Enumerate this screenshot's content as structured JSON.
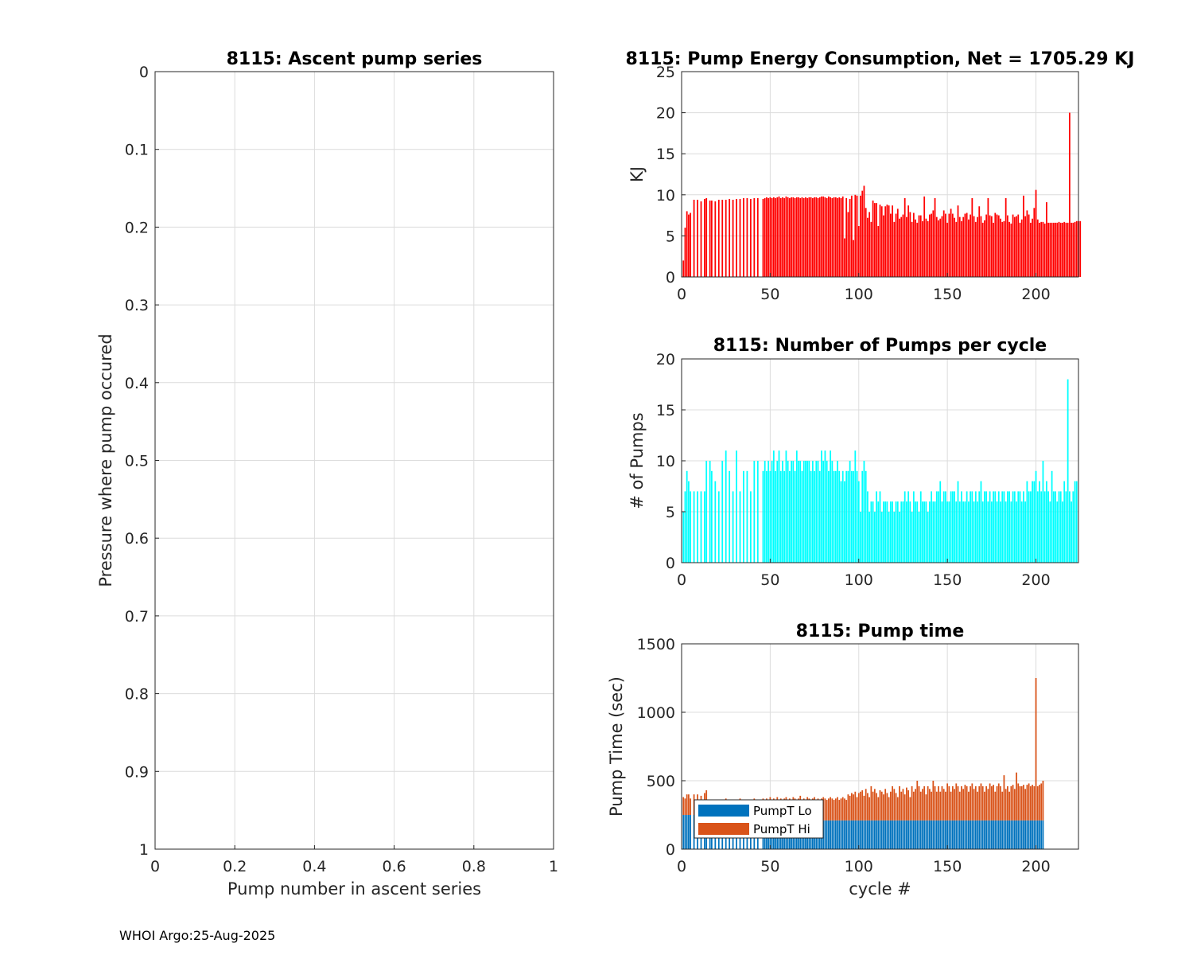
{
  "footer": "WHOI Argo:25-Aug-2025",
  "chart_data": [
    {
      "id": "ascent",
      "type": "line",
      "title": "8115: Ascent pump series",
      "xlabel": "Pump number in ascent series",
      "ylabel": "Pressure where pump occured",
      "xlim": [
        0,
        1
      ],
      "ylim": [
        0,
        1
      ],
      "y_reversed": true,
      "xticks": [
        0,
        0.2,
        0.4,
        0.6,
        0.8,
        1
      ],
      "xtick_labels": [
        "0",
        "0.2",
        "0.4",
        "0.6",
        "0.8",
        "1"
      ],
      "yticks": [
        0,
        0.1,
        0.2,
        0.3,
        0.4,
        0.5,
        0.6,
        0.7,
        0.8,
        0.9,
        1
      ],
      "ytick_labels": [
        "0",
        "0.1",
        "0.2",
        "0.3",
        "0.4",
        "0.5",
        "0.6",
        "0.7",
        "0.8",
        "0.9",
        "1"
      ],
      "grid": true,
      "series": []
    },
    {
      "id": "energy",
      "type": "bar",
      "title": "8115: Pump Energy Consumption,  Net = 1705.29 KJ",
      "xlabel": "",
      "ylabel": "KJ",
      "xlim": [
        0,
        224
      ],
      "ylim": [
        0,
        25
      ],
      "xticks": [
        0,
        50,
        100,
        150,
        200
      ],
      "xtick_labels": [
        "0",
        "50",
        "100",
        "150",
        "200"
      ],
      "yticks": [
        0,
        5,
        10,
        15,
        20,
        25
      ],
      "ytick_labels": [
        "0",
        "5",
        "10",
        "15",
        "20",
        "25"
      ],
      "grid": true,
      "color": "#ff0000",
      "cycles": [
        1,
        2,
        3,
        4,
        5,
        7,
        9,
        11,
        13,
        14,
        16,
        17,
        19,
        21,
        23,
        25,
        27,
        29,
        31,
        33,
        35,
        37,
        39,
        41,
        43
      ],
      "values": [
        2,
        6,
        8,
        7.6,
        7.8,
        9.4,
        9.4,
        9.2,
        9.5,
        9.6,
        9.3,
        9.3,
        9.2,
        9.4,
        9.4,
        9.4,
        9.5,
        9.4,
        9.5,
        9.5,
        9.6,
        9.6,
        9.5,
        9.6,
        9.6
      ],
      "continuous_start": 46,
      "continuous_values": [
        9.5,
        9.6,
        9.7,
        9.6,
        9.7,
        9.6,
        9.7,
        9.6,
        9.7,
        9.8,
        9.6,
        9.7,
        9.6,
        9.8,
        9.7,
        9.6,
        9.7,
        9.7,
        9.6,
        9.7,
        9.7,
        9.6,
        9.7,
        9.6,
        9.7,
        9.6,
        9.7,
        9.7,
        9.6,
        9.7,
        9.7,
        9.6,
        9.7,
        9.8,
        9.8,
        9.7,
        9.6,
        9.8,
        9.7,
        9.6,
        9.7,
        9.7,
        9.6,
        9.7,
        9.6,
        9.8,
        4.7,
        9.6,
        7.9,
        9.5,
        9.9,
        4.5,
        10,
        9.9,
        6.2,
        9.9,
        10.5,
        11.1,
        8.4,
        7.2,
        7.9,
        6.7,
        9.3,
        9.0,
        9.0,
        6.2,
        8.8,
        8.6,
        7.5,
        8.6,
        8.8,
        8.7,
        7.7,
        8.7,
        6.7,
        7.7,
        8.3,
        7.1,
        7.3,
        7.6,
        9.6,
        7.3,
        8.7,
        7.9,
        6.7,
        7.8,
        7.0,
        6.6,
        7.5,
        7.5,
        6.8,
        9.8,
        7.1,
        6.8,
        7.6,
        7.7,
        8.1,
        9.6,
        7.3,
        6.9,
        7.1,
        7.4,
        8.1,
        7.7,
        6.6,
        7.7,
        8.3,
        7.7,
        7.2,
        6.7,
        8.7,
        7.3,
        6.8,
        7.3,
        7.7,
        7.8,
        7.0,
        7.6,
        9.6,
        7.4,
        6.7,
        7.3,
        8.6,
        7.4,
        6.6,
        6.9,
        7.6,
        9.6,
        7.5,
        7.4,
        6.6,
        7.8,
        7.6,
        7.5,
        7.1,
        6.7,
        6.8,
        9.6,
        7.5,
        6.7,
        6.5,
        7.6,
        7.3,
        7.4,
        7.6,
        6.6,
        7.0,
        9.9,
        7.4,
        8.1,
        7.6,
        6.6,
        7.1,
        8.4,
        10.6,
        7.0,
        6.6,
        6.7,
        6.7,
        6.5,
        9.1,
        6.6,
        6.6,
        6.6,
        6.6,
        6.6,
        6.6,
        6.7,
        6.6,
        6.6,
        6.7,
        6.6,
        6.6,
        20,
        6.6,
        6.6,
        6.7,
        6.8,
        6.8,
        6.8
      ]
    },
    {
      "id": "npumps",
      "type": "bar",
      "title": "8115: Number of Pumps per cycle",
      "xlabel": "",
      "ylabel": "# of Pumps",
      "xlim": [
        0,
        224
      ],
      "ylim": [
        0,
        20
      ],
      "xticks": [
        0,
        50,
        100,
        150,
        200
      ],
      "xtick_labels": [
        "0",
        "50",
        "100",
        "150",
        "200"
      ],
      "yticks": [
        0,
        5,
        10,
        15,
        20
      ],
      "ytick_labels": [
        "0",
        "5",
        "10",
        "15",
        "20"
      ],
      "grid": true,
      "color": "#00ffff",
      "cycles": [
        1,
        2,
        3,
        4,
        5,
        7,
        9,
        11,
        13,
        14,
        16,
        17,
        19,
        21,
        23,
        25,
        27,
        29,
        31,
        33,
        35,
        37,
        39,
        41,
        43
      ],
      "values": [
        5,
        7,
        9,
        8,
        7,
        7,
        7,
        7,
        7,
        10,
        10,
        9,
        8,
        7,
        10,
        11,
        9,
        7,
        11,
        7,
        9,
        9,
        7,
        10,
        10
      ],
      "continuous_start": 46,
      "continuous_values": [
        9,
        10,
        9,
        10,
        9,
        10,
        11,
        9,
        10,
        11,
        9,
        10,
        9,
        11,
        10,
        9,
        10,
        10,
        9,
        11,
        10,
        10,
        9,
        10,
        10,
        10,
        10,
        9,
        10,
        9,
        10,
        10,
        9,
        11,
        10,
        11,
        10,
        9,
        11,
        10,
        9,
        9,
        10,
        9,
        8,
        9,
        8,
        9,
        9,
        10,
        9,
        9,
        11,
        9,
        8,
        5,
        9,
        10,
        9,
        7,
        5,
        6,
        6,
        5,
        7,
        6,
        7,
        5,
        6,
        6,
        6,
        5,
        6,
        6,
        5,
        6,
        6,
        5,
        6,
        6,
        7,
        6,
        7,
        6,
        5,
        7,
        6,
        6,
        5,
        7,
        6,
        6,
        6,
        5,
        6,
        7,
        6,
        6,
        7,
        7,
        8,
        6,
        7,
        7,
        6,
        6,
        7,
        7,
        7,
        6,
        8,
        6,
        7,
        6,
        6,
        7,
        6,
        7,
        7,
        6,
        7,
        6,
        7,
        8,
        6,
        7,
        7,
        6,
        7,
        6,
        7,
        7,
        6,
        7,
        6,
        7,
        7,
        6,
        7,
        7,
        6,
        7,
        7,
        6,
        7,
        7,
        6,
        7,
        6,
        8,
        7,
        7,
        8,
        8,
        9,
        7,
        8,
        7,
        10,
        7,
        8,
        7,
        6,
        9,
        7,
        7,
        6,
        7,
        7,
        6,
        8,
        7,
        18,
        7,
        6,
        7,
        8,
        8
      ]
    },
    {
      "id": "pumptime",
      "type": "bar",
      "stacked": true,
      "title": "8115: Pump time",
      "xlabel": "cycle #",
      "ylabel": "Pump Time (sec)",
      "xlim": [
        0,
        224
      ],
      "ylim": [
        0,
        1500
      ],
      "xticks": [
        0,
        50,
        100,
        150,
        200
      ],
      "xtick_labels": [
        "0",
        "50",
        "100",
        "150",
        "200"
      ],
      "yticks": [
        0,
        500,
        1000,
        1500
      ],
      "ytick_labels": [
        "0",
        "500",
        "1000",
        "1500"
      ],
      "grid": true,
      "legend_position": "bottom-left",
      "series": [
        {
          "name": "PumpT Lo",
          "color": "#0072bd",
          "key": "lo"
        },
        {
          "name": "PumpT Hi",
          "color": "#d95319",
          "key": "hi"
        }
      ],
      "cycles": [
        1,
        2,
        3,
        4,
        5,
        7,
        9,
        11,
        13,
        14,
        16,
        17,
        19,
        21,
        23,
        25,
        27,
        29,
        31,
        33,
        35,
        37,
        39,
        41,
        43
      ],
      "lo": [
        250,
        250,
        250,
        250,
        250,
        250,
        240,
        230,
        230,
        240,
        230,
        230,
        230,
        230,
        230,
        230,
        230,
        230,
        230,
        230,
        230,
        230,
        230,
        230,
        230
      ],
      "totals": [
        380,
        370,
        400,
        400,
        370,
        400,
        400,
        390,
        410,
        430,
        360,
        360,
        360,
        360,
        360,
        370,
        360,
        360,
        360,
        370,
        360,
        360,
        360,
        370,
        360
      ],
      "continuous_start": 46,
      "continuous_lo": 210,
      "continuous_totals": [
        370,
        360,
        370,
        360,
        380,
        360,
        370,
        360,
        380,
        360,
        370,
        360,
        370,
        380,
        360,
        370,
        360,
        380,
        370,
        360,
        370,
        390,
        360,
        370,
        360,
        380,
        370,
        360,
        370,
        380,
        360,
        370,
        360,
        370,
        380,
        370,
        360,
        370,
        380,
        370,
        360,
        370,
        380,
        360,
        370,
        380,
        370,
        360,
        400,
        390,
        410,
        400,
        420,
        380,
        410,
        420,
        430,
        390,
        440,
        410,
        380,
        460,
        420,
        440,
        410,
        380,
        430,
        420,
        400,
        440,
        410,
        380,
        420,
        460,
        440,
        410,
        380,
        460,
        420,
        440,
        400,
        450,
        430,
        380,
        460,
        420,
        440,
        500,
        460,
        420,
        440,
        460,
        400,
        460,
        440,
        420,
        500,
        460,
        420,
        460,
        420,
        460,
        440,
        420,
        480,
        460,
        420,
        460,
        440,
        480,
        460,
        420,
        460,
        440,
        470,
        460,
        420,
        460,
        480,
        440,
        460,
        420,
        460,
        480,
        460,
        420,
        460,
        440,
        480,
        460,
        470,
        420,
        460,
        480,
        460,
        420,
        540,
        440,
        460,
        420,
        460,
        470,
        440,
        560,
        480,
        460,
        460,
        470,
        440,
        470,
        480,
        460,
        470,
        460,
        1250,
        460,
        470,
        480,
        500
      ]
    }
  ]
}
